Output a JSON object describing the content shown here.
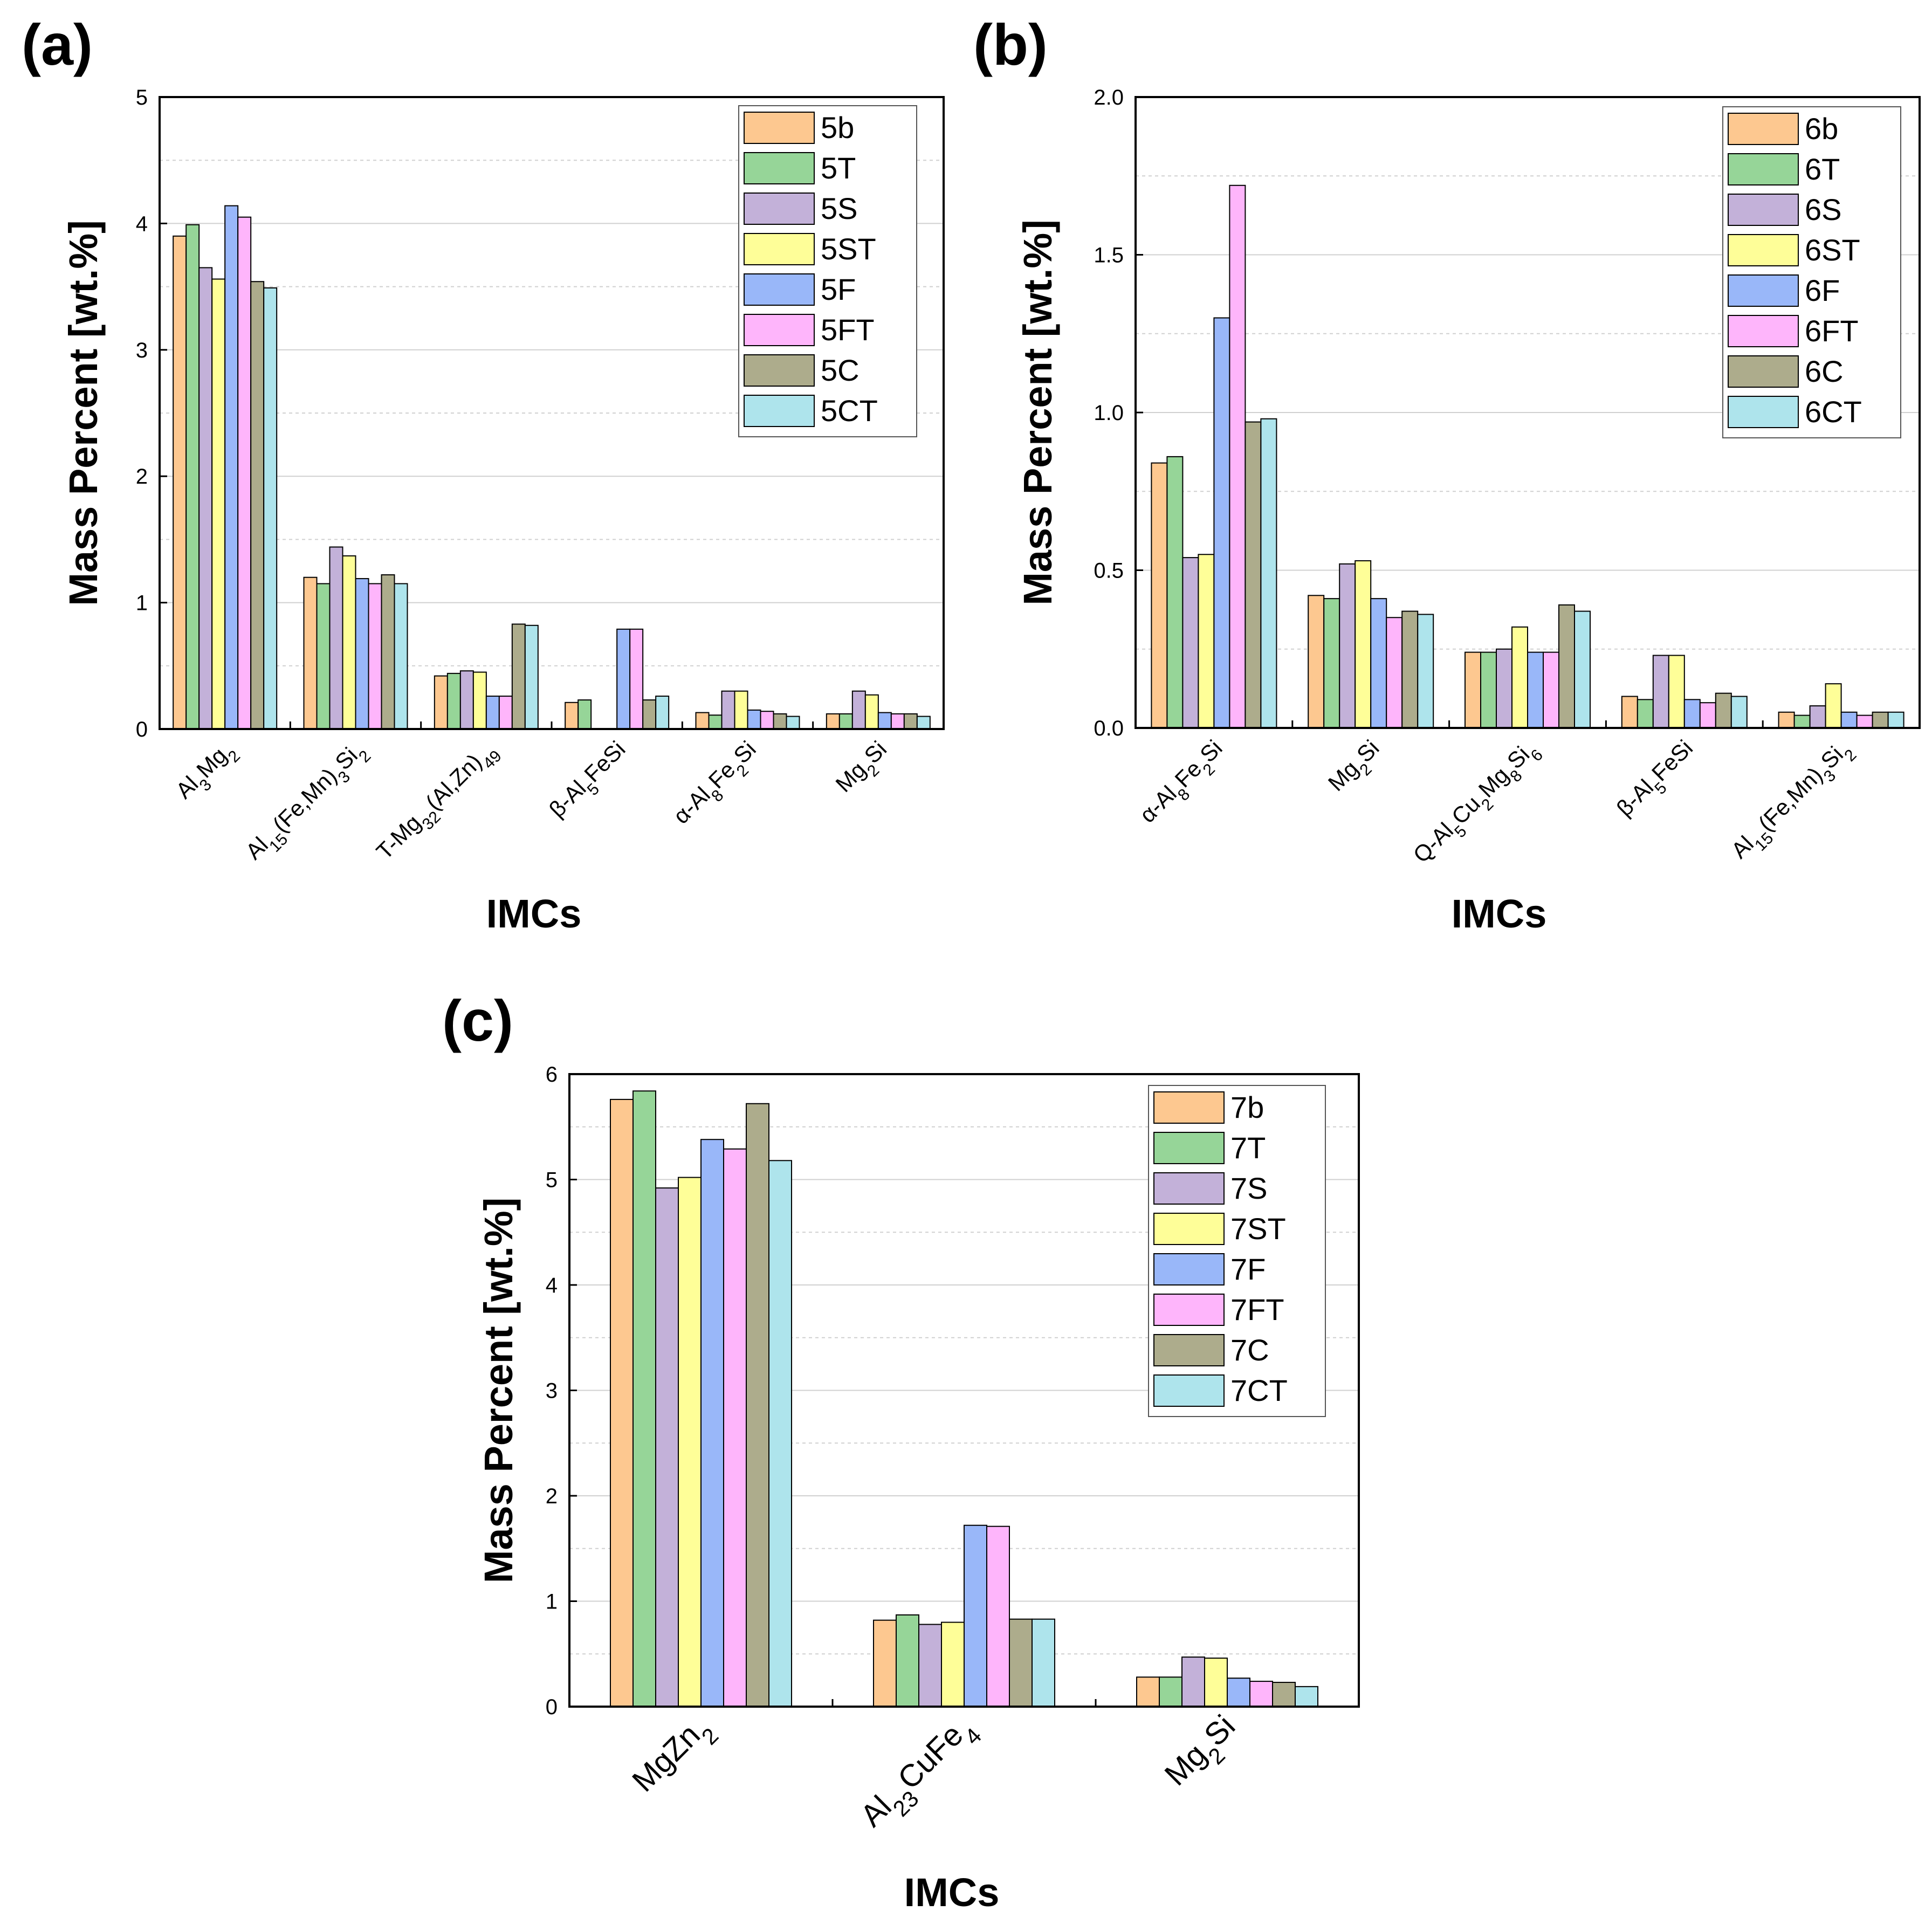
{
  "colors": {
    "b": "#FDC890",
    "T": "#96D598",
    "S": "#C3B1D9",
    "ST": "#FEFE98",
    "F": "#99B7F9",
    "FT": "#FEB5FB",
    "C": "#ADAC8C",
    "CT": "#AEE4EC"
  },
  "chart_data": [
    {
      "panel": "(a)",
      "type": "bar",
      "ylabel": "Mass Percent [wt.%]",
      "xlabel": "IMCs",
      "ylim": [
        0,
        5
      ],
      "yticks": [
        "0",
        "1",
        "2",
        "3",
        "4",
        "5"
      ],
      "categories": [
        {
          "segs": [
            [
              "Al",
              "n"
            ],
            [
              "3",
              "sub"
            ],
            [
              "Mg",
              "n"
            ],
            [
              "2",
              "sub"
            ]
          ]
        },
        {
          "segs": [
            [
              "Al",
              "n"
            ],
            [
              "15",
              "sub"
            ],
            [
              "(Fe,Mn)",
              "n"
            ],
            [
              "3",
              "sub"
            ],
            [
              "Si",
              "n"
            ],
            [
              "2",
              "sub"
            ]
          ]
        },
        {
          "segs": [
            [
              "T-Mg",
              "n"
            ],
            [
              "32",
              "sub"
            ],
            [
              "(Al,Zn)",
              "n"
            ],
            [
              "49",
              "sub"
            ]
          ]
        },
        {
          "segs": [
            [
              "β-Al",
              "n"
            ],
            [
              "5",
              "sub"
            ],
            [
              "FeSi",
              "n"
            ]
          ]
        },
        {
          "segs": [
            [
              "α-Al",
              "n"
            ],
            [
              "8",
              "sub"
            ],
            [
              "Fe",
              "n"
            ],
            [
              "2",
              "sub"
            ],
            [
              "Si",
              "n"
            ]
          ]
        },
        {
          "segs": [
            [
              "Mg",
              "n"
            ],
            [
              "2",
              "sub"
            ],
            [
              "Si",
              "n"
            ]
          ]
        }
      ],
      "series": [
        {
          "name": "5b",
          "key": "b",
          "values": [
            3.9,
            1.2,
            0.42,
            0.21,
            0.13,
            0.12
          ]
        },
        {
          "name": "5T",
          "key": "T",
          "values": [
            3.99,
            1.15,
            0.44,
            0.23,
            0.11,
            0.12
          ]
        },
        {
          "name": "5S",
          "key": "S",
          "values": [
            3.65,
            1.44,
            0.46,
            0,
            0.3,
            0.3
          ]
        },
        {
          "name": "5ST",
          "key": "ST",
          "values": [
            3.56,
            1.37,
            0.45,
            0,
            0.3,
            0.27
          ]
        },
        {
          "name": "5F",
          "key": "F",
          "values": [
            4.14,
            1.19,
            0.26,
            0.79,
            0.15,
            0.13
          ]
        },
        {
          "name": "5FT",
          "key": "FT",
          "values": [
            4.05,
            1.15,
            0.26,
            0.79,
            0.14,
            0.12
          ]
        },
        {
          "name": "5C",
          "key": "C",
          "values": [
            3.54,
            1.22,
            0.83,
            0.23,
            0.12,
            0.12
          ]
        },
        {
          "name": "5CT",
          "key": "CT",
          "values": [
            3.49,
            1.15,
            0.82,
            0.26,
            0.1,
            0.1
          ]
        }
      ]
    },
    {
      "panel": "(b)",
      "type": "bar",
      "ylabel": "Mass Percent [wt.%]",
      "xlabel": "IMCs",
      "ylim": [
        0,
        2
      ],
      "yticks": [
        "0.0",
        "0.5",
        "1.0",
        "1.5",
        "2.0"
      ],
      "categories": [
        {
          "segs": [
            [
              "α-Al",
              "n"
            ],
            [
              "8",
              "sub"
            ],
            [
              "Fe",
              "n"
            ],
            [
              "2",
              "sub"
            ],
            [
              "Si",
              "n"
            ]
          ]
        },
        {
          "segs": [
            [
              "Mg",
              "n"
            ],
            [
              "2",
              "sub"
            ],
            [
              "Si",
              "n"
            ]
          ]
        },
        {
          "segs": [
            [
              "Q-Al",
              "n"
            ],
            [
              "5",
              "sub"
            ],
            [
              "Cu",
              "n"
            ],
            [
              "2",
              "sub"
            ],
            [
              "Mg",
              "n"
            ],
            [
              "8",
              "sub"
            ],
            [
              "Si",
              "n"
            ],
            [
              "6",
              "sub"
            ]
          ]
        },
        {
          "segs": [
            [
              "β-Al",
              "n"
            ],
            [
              "5",
              "sub"
            ],
            [
              "FeSi",
              "n"
            ]
          ]
        },
        {
          "segs": [
            [
              "Al",
              "n"
            ],
            [
              "15",
              "sub"
            ],
            [
              "(Fe,Mn)",
              "n"
            ],
            [
              "3",
              "sub"
            ],
            [
              "Si",
              "n"
            ],
            [
              "2",
              "sub"
            ]
          ]
        }
      ],
      "series": [
        {
          "name": "6b",
          "key": "b",
          "values": [
            0.84,
            0.42,
            0.24,
            0.1,
            0.05
          ]
        },
        {
          "name": "6T",
          "key": "T",
          "values": [
            0.86,
            0.41,
            0.24,
            0.09,
            0.04
          ]
        },
        {
          "name": "6S",
          "key": "S",
          "values": [
            0.54,
            0.52,
            0.25,
            0.23,
            0.07
          ]
        },
        {
          "name": "6ST",
          "key": "ST",
          "values": [
            0.55,
            0.53,
            0.32,
            0.23,
            0.14
          ]
        },
        {
          "name": "6F",
          "key": "F",
          "values": [
            1.3,
            0.41,
            0.24,
            0.09,
            0.05
          ]
        },
        {
          "name": "6FT",
          "key": "FT",
          "values": [
            1.72,
            0.35,
            0.24,
            0.08,
            0.04
          ]
        },
        {
          "name": "6C",
          "key": "C",
          "values": [
            0.97,
            0.37,
            0.39,
            0.11,
            0.05
          ]
        },
        {
          "name": "6CT",
          "key": "CT",
          "values": [
            0.98,
            0.36,
            0.37,
            0.1,
            0.05
          ]
        }
      ]
    },
    {
      "panel": "(c)",
      "type": "bar",
      "ylabel": "Mass Percent [wt.%]",
      "xlabel": "IMCs",
      "ylim": [
        0,
        6
      ],
      "yticks": [
        "0",
        "1",
        "2",
        "3",
        "4",
        "5",
        "6"
      ],
      "categories": [
        {
          "segs": [
            [
              "MgZn",
              "n"
            ],
            [
              "2",
              "sub"
            ]
          ]
        },
        {
          "segs": [
            [
              "Al",
              "n"
            ],
            [
              "23",
              "sub"
            ],
            [
              "CuFe",
              "n"
            ],
            [
              "4",
              "sub"
            ]
          ]
        },
        {
          "segs": [
            [
              "Mg",
              "n"
            ],
            [
              "2",
              "sub"
            ],
            [
              "Si",
              "n"
            ]
          ]
        }
      ],
      "series": [
        {
          "name": "7b",
          "key": "b",
          "values": [
            5.76,
            0.82,
            0.28
          ]
        },
        {
          "name": "7T",
          "key": "T",
          "values": [
            5.84,
            0.87,
            0.28
          ]
        },
        {
          "name": "7S",
          "key": "S",
          "values": [
            4.92,
            0.78,
            0.47
          ]
        },
        {
          "name": "7ST",
          "key": "ST",
          "values": [
            5.02,
            0.8,
            0.46
          ]
        },
        {
          "name": "7F",
          "key": "F",
          "values": [
            5.38,
            1.72,
            0.27
          ]
        },
        {
          "name": "7FT",
          "key": "FT",
          "values": [
            5.29,
            1.71,
            0.24
          ]
        },
        {
          "name": "7C",
          "key": "C",
          "values": [
            5.72,
            0.83,
            0.23
          ]
        },
        {
          "name": "7CT",
          "key": "CT",
          "values": [
            5.18,
            0.83,
            0.19
          ]
        }
      ]
    }
  ]
}
